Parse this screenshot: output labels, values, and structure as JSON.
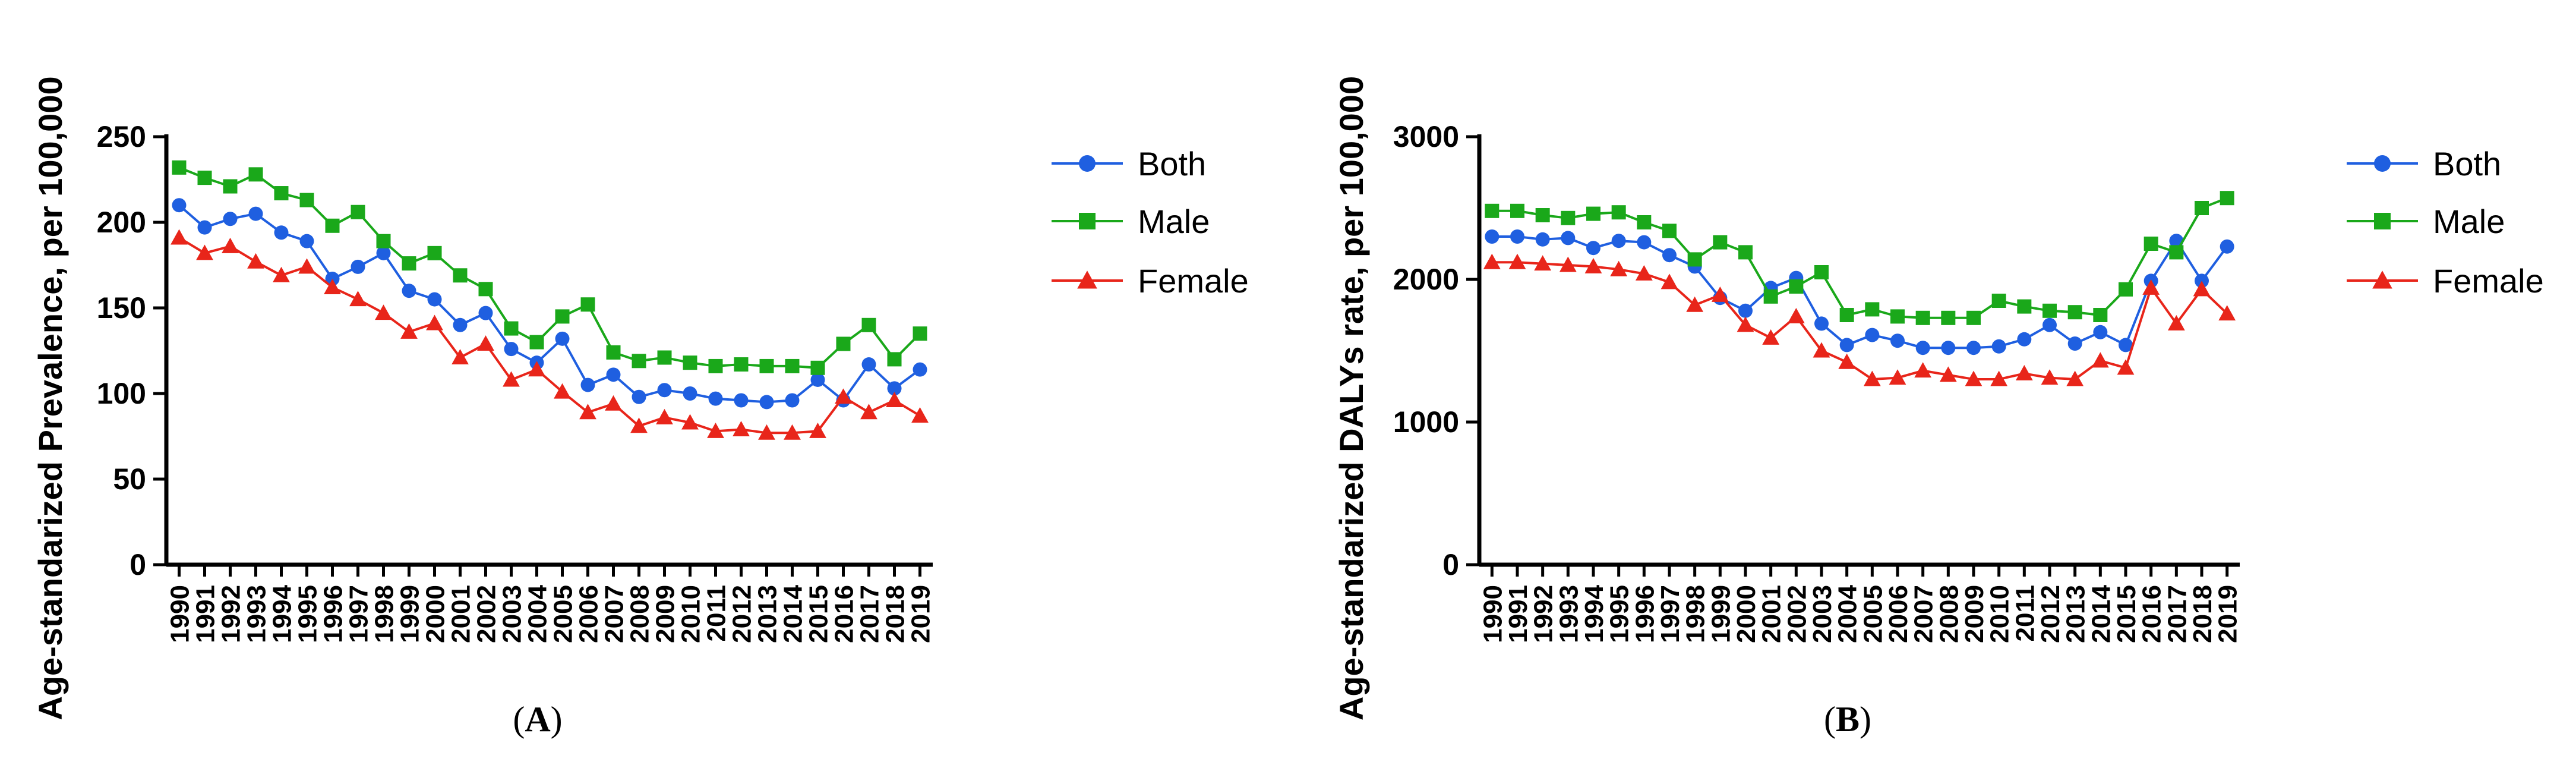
{
  "chart_data": [
    {
      "type": "line",
      "panel_label": "(A)",
      "panel_letter": "A",
      "title": "",
      "xlabel": "",
      "ylabel": "Age-standarized Prevalence, per 100,000",
      "ylim": [
        0,
        250
      ],
      "yticks": [
        0,
        50,
        100,
        150,
        200,
        250
      ],
      "categories": [
        "1990",
        "1991",
        "1992",
        "1993",
        "1994",
        "1995",
        "1996",
        "1997",
        "1998",
        "1999",
        "2000",
        "2001",
        "2002",
        "2003",
        "2004",
        "2005",
        "2006",
        "2007",
        "2008",
        "2009",
        "2010",
        "2011",
        "2012",
        "2013",
        "2014",
        "2015",
        "2016",
        "2017",
        "2018",
        "2019"
      ],
      "legend_position": "right",
      "series": [
        {
          "name": "Both",
          "color": "#1f5fe0",
          "marker": "circle",
          "values": [
            210,
            197,
            202,
            205,
            194,
            189,
            167,
            174,
            182,
            160,
            155,
            140,
            147,
            126,
            118,
            132,
            105,
            111,
            98,
            102,
            100,
            97,
            96,
            95,
            96,
            108,
            96,
            117,
            103,
            114
          ]
        },
        {
          "name": "Male",
          "color": "#1aa81a",
          "marker": "square",
          "values": [
            232,
            226,
            221,
            228,
            217,
            213,
            198,
            206,
            189,
            176,
            182,
            169,
            161,
            138,
            130,
            145,
            152,
            124,
            119,
            121,
            118,
            116,
            117,
            116,
            116,
            115,
            129,
            140,
            120,
            135
          ]
        },
        {
          "name": "Female",
          "color": "#e8251a",
          "marker": "triangle",
          "values": [
            191,
            182,
            186,
            177,
            169,
            174,
            162,
            155,
            147,
            136,
            141,
            121,
            129,
            108,
            114,
            101,
            89,
            94,
            81,
            86,
            83,
            78,
            79,
            77,
            77,
            78,
            98,
            89,
            96,
            87
          ]
        }
      ]
    },
    {
      "type": "line",
      "panel_label": "(B)",
      "panel_letter": "B",
      "title": "",
      "xlabel": "",
      "ylabel": "Age-standarized DALYs rate, per 100,000",
      "ylim": [
        0,
        3000
      ],
      "yticks": [
        0,
        1000,
        2000,
        3000
      ],
      "categories": [
        "1990",
        "1991",
        "1992",
        "1993",
        "1994",
        "1995",
        "1996",
        "1997",
        "1998",
        "1999",
        "2000",
        "2001",
        "2002",
        "2003",
        "2004",
        "2005",
        "2006",
        "2007",
        "2008",
        "2009",
        "2010",
        "2011",
        "2012",
        "2013",
        "2014",
        "2015",
        "2016",
        "2017",
        "2018",
        "2019"
      ],
      "legend_position": "right",
      "series": [
        {
          "name": "Both",
          "color": "#1f5fe0",
          "marker": "circle",
          "values": [
            2300,
            2300,
            2280,
            2290,
            2220,
            2270,
            2260,
            2170,
            2090,
            1870,
            1780,
            1940,
            2010,
            1690,
            1540,
            1610,
            1570,
            1520,
            1520,
            1520,
            1530,
            1580,
            1680,
            1550,
            1630,
            1540,
            1990,
            2270,
            1990,
            2230
          ]
        },
        {
          "name": "Male",
          "color": "#1aa81a",
          "marker": "square",
          "values": [
            2480,
            2480,
            2450,
            2430,
            2460,
            2470,
            2400,
            2340,
            2140,
            2260,
            2190,
            1880,
            1950,
            2050,
            1750,
            1790,
            1740,
            1730,
            1730,
            1730,
            1850,
            1810,
            1780,
            1770,
            1750,
            1930,
            2250,
            2190,
            2500,
            2570
          ]
        },
        {
          "name": "Female",
          "color": "#e8251a",
          "marker": "triangle",
          "values": [
            2120,
            2120,
            2110,
            2100,
            2090,
            2070,
            2040,
            1980,
            1820,
            1890,
            1680,
            1590,
            1740,
            1500,
            1420,
            1300,
            1310,
            1360,
            1330,
            1300,
            1300,
            1340,
            1310,
            1300,
            1430,
            1380,
            1940,
            1690,
            1930,
            1760
          ]
        }
      ]
    }
  ]
}
